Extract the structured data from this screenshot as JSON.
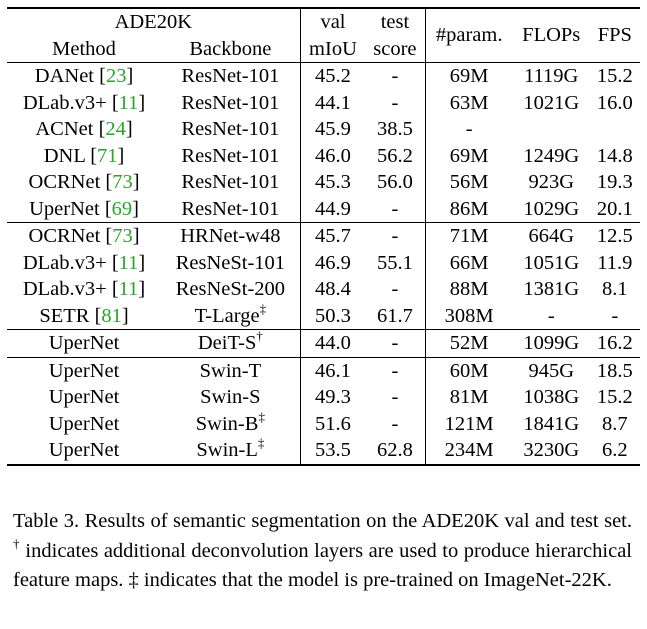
{
  "table": {
    "header": {
      "dataset": "ADE20K",
      "method": "Method",
      "backbone": "Backbone",
      "val_top": "val",
      "val_bottom": "mIoU",
      "test_top": "test",
      "test_bottom": "score",
      "params": "#param.",
      "flops": "FLOPs",
      "fps": "FPS"
    },
    "groups": [
      [
        {
          "method": "DANet",
          "cite": "23",
          "backbone": "ResNet-101",
          "sup": "",
          "val": "45.2",
          "test": "-",
          "params": "69M",
          "flops": "1119G",
          "fps": "15.2"
        },
        {
          "method": "DLab.v3+",
          "cite": "11",
          "backbone": "ResNet-101",
          "sup": "",
          "val": "44.1",
          "test": "-",
          "params": "63M",
          "flops": "1021G",
          "fps": "16.0"
        },
        {
          "method": "ACNet",
          "cite": "24",
          "backbone": "ResNet-101",
          "sup": "",
          "val": "45.9",
          "test": "38.5",
          "params": "-",
          "flops": "",
          "fps": ""
        },
        {
          "method": "DNL",
          "cite": "71",
          "backbone": "ResNet-101",
          "sup": "",
          "val": "46.0",
          "test": "56.2",
          "params": "69M",
          "flops": "1249G",
          "fps": "14.8"
        },
        {
          "method": "OCRNet",
          "cite": "73",
          "backbone": "ResNet-101",
          "sup": "",
          "val": "45.3",
          "test": "56.0",
          "params": "56M",
          "flops": "923G",
          "fps": "19.3"
        },
        {
          "method": "UperNet",
          "cite": "69",
          "backbone": "ResNet-101",
          "sup": "",
          "val": "44.9",
          "test": "-",
          "params": "86M",
          "flops": "1029G",
          "fps": "20.1"
        }
      ],
      [
        {
          "method": "OCRNet",
          "cite": "73",
          "backbone": "HRNet-w48",
          "sup": "",
          "val": "45.7",
          "test": "-",
          "params": "71M",
          "flops": "664G",
          "fps": "12.5"
        },
        {
          "method": "DLab.v3+",
          "cite": "11",
          "backbone": "ResNeSt-101",
          "sup": "",
          "val": "46.9",
          "test": "55.1",
          "params": "66M",
          "flops": "1051G",
          "fps": "11.9"
        },
        {
          "method": "DLab.v3+",
          "cite": "11",
          "backbone": "ResNeSt-200",
          "sup": "",
          "val": "48.4",
          "test": "-",
          "params": "88M",
          "flops": "1381G",
          "fps": "8.1"
        },
        {
          "method": "SETR",
          "cite": "81",
          "backbone": "T-Large",
          "sup": "‡",
          "val": "50.3",
          "test": "61.7",
          "params": "308M",
          "flops": "-",
          "fps": "-"
        }
      ],
      [
        {
          "method": "UperNet",
          "cite": "",
          "backbone": "DeiT-S",
          "sup": "†",
          "val": "44.0",
          "test": "-",
          "params": "52M",
          "flops": "1099G",
          "fps": "16.2"
        }
      ],
      [
        {
          "method": "UperNet",
          "cite": "",
          "backbone": "Swin-T",
          "sup": "",
          "val": "46.1",
          "test": "-",
          "params": "60M",
          "flops": "945G",
          "fps": "18.5"
        },
        {
          "method": "UperNet",
          "cite": "",
          "backbone": "Swin-S",
          "sup": "",
          "val": "49.3",
          "test": "-",
          "params": "81M",
          "flops": "1038G",
          "fps": "15.2"
        },
        {
          "method": "UperNet",
          "cite": "",
          "backbone": "Swin-B",
          "sup": "‡",
          "val": "51.6",
          "test": "-",
          "params": "121M",
          "flops": "1841G",
          "fps": "8.7"
        },
        {
          "method": "UperNet",
          "cite": "",
          "backbone": "Swin-L",
          "sup": "‡",
          "val": "53.5",
          "test": "62.8",
          "params": "234M",
          "flops": "3230G",
          "fps": "6.2",
          "bold": true
        }
      ]
    ]
  },
  "caption": {
    "part1": "Table 3. Results of semantic segmentation on the ADE20K val and test set. ",
    "dagger": "†",
    "part2": " indicates additional deconvolution layers are used to produce hierarchical feature maps. ‡ indicates that the model is pre-trained on ImageNet-22K."
  }
}
